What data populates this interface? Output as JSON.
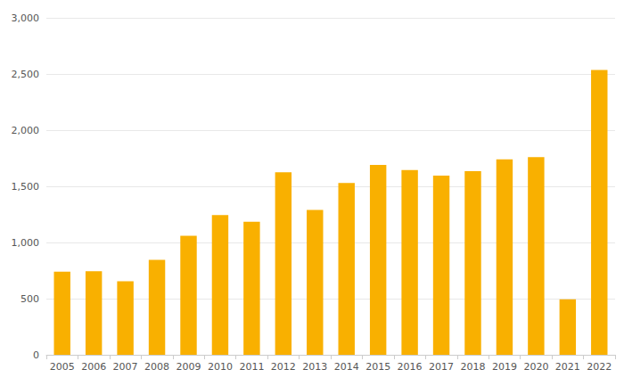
{
  "chart_data": {
    "type": "bar",
    "categories": [
      "2005",
      "2006",
      "2007",
      "2008",
      "2009",
      "2010",
      "2011",
      "2012",
      "2013",
      "2014",
      "2015",
      "2016",
      "2017",
      "2018",
      "2019",
      "2020",
      "2021",
      "2022"
    ],
    "values": [
      740,
      745,
      655,
      845,
      1060,
      1245,
      1185,
      1625,
      1290,
      1530,
      1690,
      1645,
      1595,
      1635,
      1740,
      1760,
      495,
      2535
    ],
    "color": "#f9b000",
    "ylim": [
      0,
      3000
    ],
    "yticks": [
      0,
      500,
      {
        "value": 1000,
        "label": "1,000"
      },
      {
        "value": 1500,
        "label": "1,500"
      },
      {
        "value": 2000,
        "label": "2,000"
      },
      {
        "value": 2500,
        "label": "2,500"
      },
      {
        "value": 3000,
        "label": "3,000"
      }
    ],
    "grid": true
  }
}
